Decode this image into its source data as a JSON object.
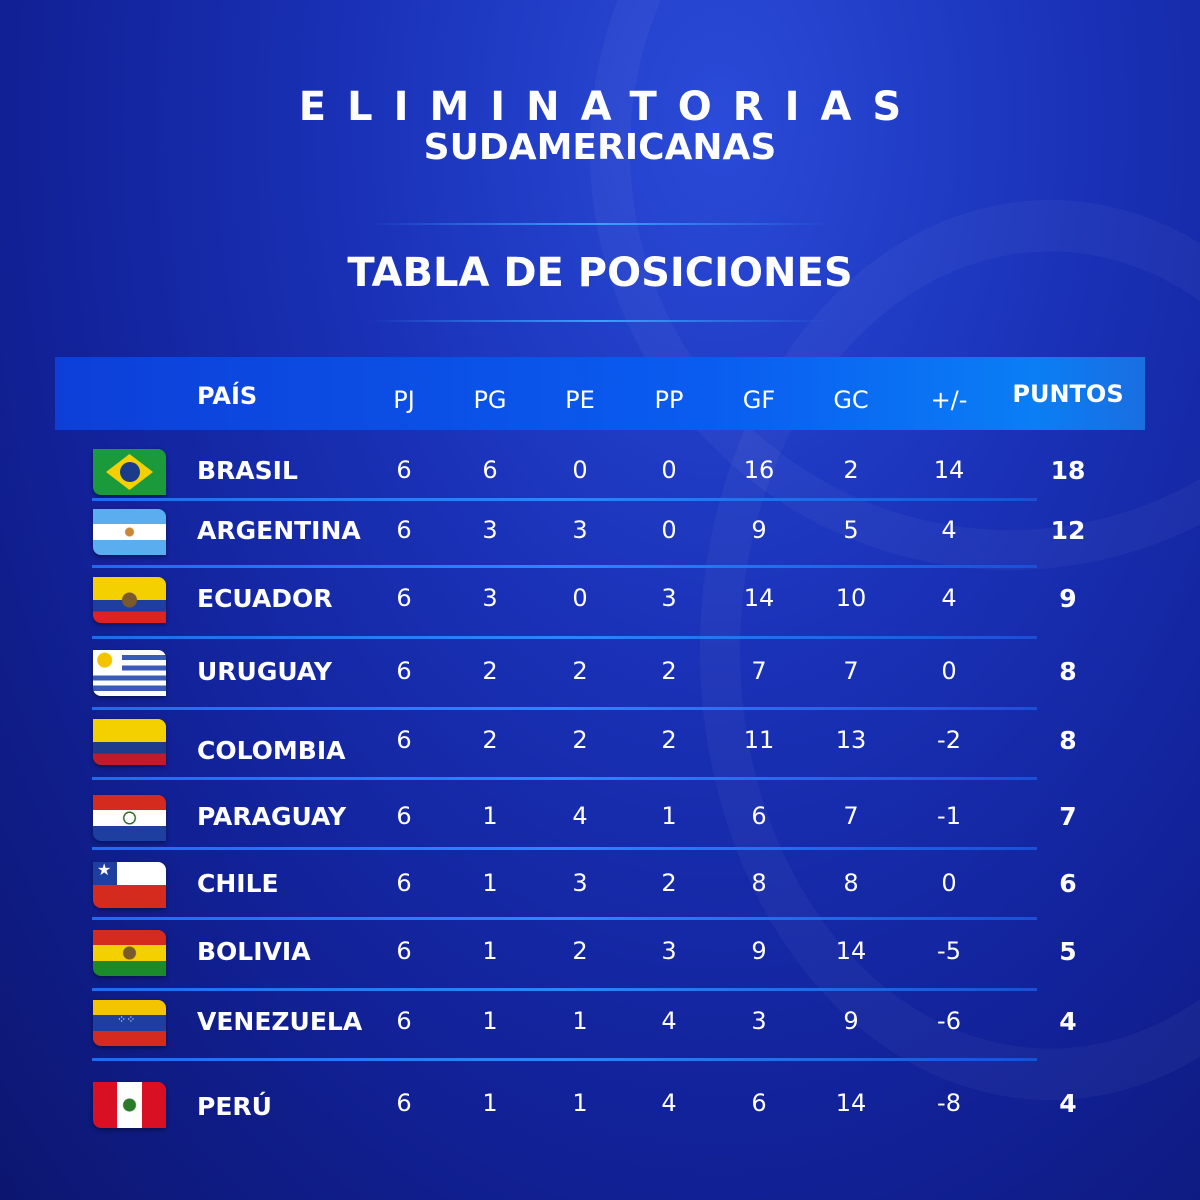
{
  "title_line1": "ELIMINATORIAS",
  "title_line2": "SUDAMERICANAS",
  "subtitle": "TABLA DE POSICIONES",
  "columns": [
    "PAÍS",
    "PJ",
    "PG",
    "PE",
    "PP",
    "GF",
    "GC",
    "+/-",
    "PUNTOS"
  ],
  "rows": [
    {
      "team": "BRASIL",
      "flag": "brazil-flag",
      "pj": "6",
      "pg": "6",
      "pe": "0",
      "pp": "0",
      "gf": "16",
      "gc": "2",
      "dif": "14",
      "pts": "18"
    },
    {
      "team": "ARGENTINA",
      "flag": "argentina-flag",
      "pj": "6",
      "pg": "3",
      "pe": "3",
      "pp": "0",
      "gf": "9",
      "gc": "5",
      "dif": "4",
      "pts": "12"
    },
    {
      "team": "ECUADOR",
      "flag": "ecuador-flag",
      "pj": "6",
      "pg": "3",
      "pe": "0",
      "pp": "3",
      "gf": "14",
      "gc": "10",
      "dif": "4",
      "pts": "9"
    },
    {
      "team": "URUGUAY",
      "flag": "uruguay-flag",
      "pj": "6",
      "pg": "2",
      "pe": "2",
      "pp": "2",
      "gf": "7",
      "gc": "7",
      "dif": "0",
      "pts": "8"
    },
    {
      "team": "COLOMBIA",
      "flag": "colombia-flag",
      "pj": "6",
      "pg": "2",
      "pe": "2",
      "pp": "2",
      "gf": "11",
      "gc": "13",
      "dif": "-2",
      "pts": "8"
    },
    {
      "team": "PARAGUAY",
      "flag": "paraguay-flag",
      "pj": "6",
      "pg": "1",
      "pe": "4",
      "pp": "1",
      "gf": "6",
      "gc": "7",
      "dif": "-1",
      "pts": "7"
    },
    {
      "team": "CHILE",
      "flag": "chile-flag",
      "pj": "6",
      "pg": "1",
      "pe": "3",
      "pp": "2",
      "gf": "8",
      "gc": "8",
      "dif": "0",
      "pts": "6"
    },
    {
      "team": "BOLIVIA",
      "flag": "bolivia-flag",
      "pj": "6",
      "pg": "1",
      "pe": "2",
      "pp": "3",
      "gf": "9",
      "gc": "14",
      "dif": "-5",
      "pts": "5"
    },
    {
      "team": "VENEZUELA",
      "flag": "venezuela-flag",
      "pj": "6",
      "pg": "1",
      "pe": "1",
      "pp": "4",
      "gf": "3",
      "gc": "9",
      "dif": "-6",
      "pts": "4"
    },
    {
      "team": "PERÚ",
      "flag": "peru-flag",
      "pj": "6",
      "pg": "1",
      "pe": "1",
      "pp": "4",
      "gf": "6",
      "gc": "14",
      "dif": "-8",
      "pts": "4"
    }
  ]
}
